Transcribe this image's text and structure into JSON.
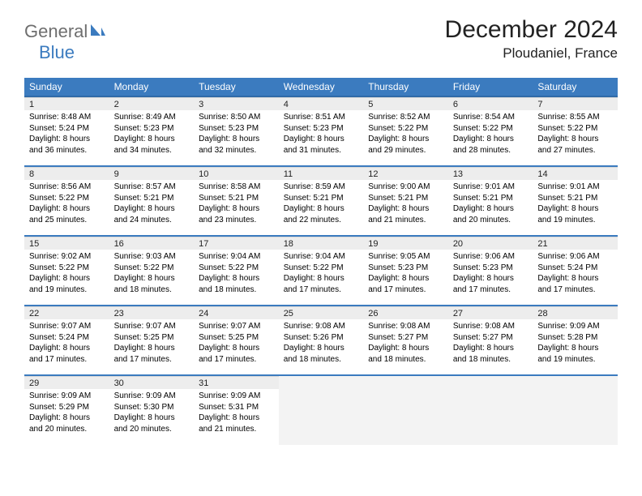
{
  "logo": {
    "general": "General",
    "blue": "Blue"
  },
  "title": "December 2024",
  "location": "Ploudaniel, France",
  "header_bg": "#3b7bbf",
  "header_fg": "#ffffff",
  "daynum_bg": "#ededed",
  "rule_color": "#3b7bbf",
  "empty_bg": "#f3f3f3",
  "daynames": [
    "Sunday",
    "Monday",
    "Tuesday",
    "Wednesday",
    "Thursday",
    "Friday",
    "Saturday"
  ],
  "weeks": [
    [
      {
        "n": "1",
        "sr": "8:48 AM",
        "ss": "5:24 PM",
        "dl": "8 hours and 36 minutes."
      },
      {
        "n": "2",
        "sr": "8:49 AM",
        "ss": "5:23 PM",
        "dl": "8 hours and 34 minutes."
      },
      {
        "n": "3",
        "sr": "8:50 AM",
        "ss": "5:23 PM",
        "dl": "8 hours and 32 minutes."
      },
      {
        "n": "4",
        "sr": "8:51 AM",
        "ss": "5:23 PM",
        "dl": "8 hours and 31 minutes."
      },
      {
        "n": "5",
        "sr": "8:52 AM",
        "ss": "5:22 PM",
        "dl": "8 hours and 29 minutes."
      },
      {
        "n": "6",
        "sr": "8:54 AM",
        "ss": "5:22 PM",
        "dl": "8 hours and 28 minutes."
      },
      {
        "n": "7",
        "sr": "8:55 AM",
        "ss": "5:22 PM",
        "dl": "8 hours and 27 minutes."
      }
    ],
    [
      {
        "n": "8",
        "sr": "8:56 AM",
        "ss": "5:22 PM",
        "dl": "8 hours and 25 minutes."
      },
      {
        "n": "9",
        "sr": "8:57 AM",
        "ss": "5:21 PM",
        "dl": "8 hours and 24 minutes."
      },
      {
        "n": "10",
        "sr": "8:58 AM",
        "ss": "5:21 PM",
        "dl": "8 hours and 23 minutes."
      },
      {
        "n": "11",
        "sr": "8:59 AM",
        "ss": "5:21 PM",
        "dl": "8 hours and 22 minutes."
      },
      {
        "n": "12",
        "sr": "9:00 AM",
        "ss": "5:21 PM",
        "dl": "8 hours and 21 minutes."
      },
      {
        "n": "13",
        "sr": "9:01 AM",
        "ss": "5:21 PM",
        "dl": "8 hours and 20 minutes."
      },
      {
        "n": "14",
        "sr": "9:01 AM",
        "ss": "5:21 PM",
        "dl": "8 hours and 19 minutes."
      }
    ],
    [
      {
        "n": "15",
        "sr": "9:02 AM",
        "ss": "5:22 PM",
        "dl": "8 hours and 19 minutes."
      },
      {
        "n": "16",
        "sr": "9:03 AM",
        "ss": "5:22 PM",
        "dl": "8 hours and 18 minutes."
      },
      {
        "n": "17",
        "sr": "9:04 AM",
        "ss": "5:22 PM",
        "dl": "8 hours and 18 minutes."
      },
      {
        "n": "18",
        "sr": "9:04 AM",
        "ss": "5:22 PM",
        "dl": "8 hours and 17 minutes."
      },
      {
        "n": "19",
        "sr": "9:05 AM",
        "ss": "5:23 PM",
        "dl": "8 hours and 17 minutes."
      },
      {
        "n": "20",
        "sr": "9:06 AM",
        "ss": "5:23 PM",
        "dl": "8 hours and 17 minutes."
      },
      {
        "n": "21",
        "sr": "9:06 AM",
        "ss": "5:24 PM",
        "dl": "8 hours and 17 minutes."
      }
    ],
    [
      {
        "n": "22",
        "sr": "9:07 AM",
        "ss": "5:24 PM",
        "dl": "8 hours and 17 minutes."
      },
      {
        "n": "23",
        "sr": "9:07 AM",
        "ss": "5:25 PM",
        "dl": "8 hours and 17 minutes."
      },
      {
        "n": "24",
        "sr": "9:07 AM",
        "ss": "5:25 PM",
        "dl": "8 hours and 17 minutes."
      },
      {
        "n": "25",
        "sr": "9:08 AM",
        "ss": "5:26 PM",
        "dl": "8 hours and 18 minutes."
      },
      {
        "n": "26",
        "sr": "9:08 AM",
        "ss": "5:27 PM",
        "dl": "8 hours and 18 minutes."
      },
      {
        "n": "27",
        "sr": "9:08 AM",
        "ss": "5:27 PM",
        "dl": "8 hours and 18 minutes."
      },
      {
        "n": "28",
        "sr": "9:09 AM",
        "ss": "5:28 PM",
        "dl": "8 hours and 19 minutes."
      }
    ],
    [
      {
        "n": "29",
        "sr": "9:09 AM",
        "ss": "5:29 PM",
        "dl": "8 hours and 20 minutes."
      },
      {
        "n": "30",
        "sr": "9:09 AM",
        "ss": "5:30 PM",
        "dl": "8 hours and 20 minutes."
      },
      {
        "n": "31",
        "sr": "9:09 AM",
        "ss": "5:31 PM",
        "dl": "8 hours and 21 minutes."
      },
      null,
      null,
      null,
      null
    ]
  ],
  "labels": {
    "sunrise": "Sunrise: ",
    "sunset": "Sunset: ",
    "daylight": "Daylight: "
  }
}
